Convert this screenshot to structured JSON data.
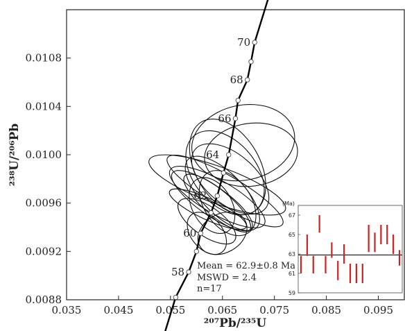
{
  "chart_data": [
    {
      "type": "scatter",
      "subtype": "concordia-diagram",
      "xlabel": "²⁰⁷Pb/²³⁵U",
      "ylabel": "²³⁸U/²⁰⁶Pb",
      "xlim": [
        0.035,
        0.1
      ],
      "ylim": [
        0.0088,
        0.0112
      ],
      "x_ticks": [
        0.035,
        0.045,
        0.055,
        0.065,
        0.075,
        0.085,
        0.095
      ],
      "y_ticks": [
        0.0088,
        0.0092,
        0.0096,
        0.01,
        0.0104,
        0.0108
      ],
      "x_tick_labels": [
        "0.035",
        "0.045",
        "0.055",
        "0.065",
        "0.075",
        "0.085",
        "0.095"
      ],
      "y_tick_labels": [
        "0.0088",
        "0.0092",
        "0.0096",
        "0.0100",
        "0.0104",
        "0.0108"
      ],
      "grid": false,
      "concordia": [
        {
          "x": 0.056,
          "y": 0.00882
        },
        {
          "x": 0.0585,
          "y": 0.00903
        },
        {
          "x": 0.06,
          "y": 0.0092
        },
        {
          "x": 0.0608,
          "y": 0.00935
        },
        {
          "x": 0.0628,
          "y": 0.00952
        },
        {
          "x": 0.064,
          "y": 0.00966
        },
        {
          "x": 0.0652,
          "y": 0.00985
        },
        {
          "x": 0.0662,
          "y": 0.01
        },
        {
          "x": 0.0675,
          "y": 0.0103
        },
        {
          "x": 0.068,
          "y": 0.01045
        },
        {
          "x": 0.0698,
          "y": 0.01062
        },
        {
          "x": 0.0705,
          "y": 0.01077
        },
        {
          "x": 0.0712,
          "y": 0.01093
        }
      ],
      "age_labels": [
        {
          "label": "58",
          "x": 0.0585,
          "y": 0.00903
        },
        {
          "label": "60",
          "x": 0.0608,
          "y": 0.00935
        },
        {
          "label": "62",
          "x": 0.0628,
          "y": 0.00966
        },
        {
          "label": "64",
          "x": 0.0652,
          "y": 0.01
        },
        {
          "label": "66",
          "x": 0.0675,
          "y": 0.0103
        },
        {
          "label": "68",
          "x": 0.0698,
          "y": 0.01062
        },
        {
          "label": "70",
          "x": 0.0712,
          "y": 0.01093
        }
      ],
      "error_ellipses": [
        {
          "cx": 0.069,
          "cy": 0.0101,
          "rx": 0.01,
          "ry": 0.00031,
          "angle": -12
        },
        {
          "cx": 0.0705,
          "cy": 0.01,
          "rx": 0.009,
          "ry": 0.00026,
          "angle": -8
        },
        {
          "cx": 0.066,
          "cy": 0.0099,
          "rx": 0.0062,
          "ry": 0.00043,
          "angle": -30
        },
        {
          "cx": 0.0655,
          "cy": 0.00985,
          "rx": 0.006,
          "ry": 0.0004,
          "angle": -40
        },
        {
          "cx": 0.0665,
          "cy": 0.0098,
          "rx": 0.0048,
          "ry": 0.00038,
          "angle": -50
        },
        {
          "cx": 0.064,
          "cy": 0.00975,
          "rx": 0.0035,
          "ry": 0.0006,
          "angle": -70
        },
        {
          "cx": 0.0655,
          "cy": 0.0097,
          "rx": 0.003,
          "ry": 0.00055,
          "angle": -60
        },
        {
          "cx": 0.065,
          "cy": 0.00968,
          "rx": 0.004,
          "ry": 0.0004,
          "angle": -45
        },
        {
          "cx": 0.064,
          "cy": 0.00965,
          "rx": 0.0032,
          "ry": 0.00045,
          "angle": -60
        },
        {
          "cx": 0.063,
          "cy": 0.00962,
          "rx": 0.0028,
          "ry": 0.0004,
          "angle": -55
        },
        {
          "cx": 0.066,
          "cy": 0.0096,
          "rx": 0.0045,
          "ry": 0.0003,
          "angle": -35
        },
        {
          "cx": 0.064,
          "cy": 0.0096,
          "rx": 0.0025,
          "ry": 0.00035,
          "angle": -50
        },
        {
          "cx": 0.063,
          "cy": 0.00958,
          "rx": 0.0038,
          "ry": 0.00025,
          "angle": -30
        },
        {
          "cx": 0.0622,
          "cy": 0.00955,
          "rx": 0.002,
          "ry": 0.00035,
          "angle": -65
        },
        {
          "cx": 0.062,
          "cy": 0.00945,
          "rx": 0.0028,
          "ry": 0.00028,
          "angle": -55
        },
        {
          "cx": 0.062,
          "cy": 0.00935,
          "rx": 0.003,
          "ry": 0.0002,
          "angle": -40
        },
        {
          "cx": 0.065,
          "cy": 0.00935,
          "rx": 0.005,
          "ry": 0.00016,
          "angle": -30
        }
      ],
      "annotations": [
        "Mean = 62.9±0.8 Ma",
        "MSWD = 2.4",
        "n=17"
      ]
    },
    {
      "type": "bar",
      "subtype": "weighted-mean-age-inset",
      "unit_label": "(Ma)",
      "ylim": [
        59,
        68
      ],
      "y_ticks": [
        59,
        61,
        63,
        65,
        67
      ],
      "y_tick_labels": [
        "59",
        "61",
        "63",
        "65",
        "67"
      ],
      "mean_line": 62.9,
      "bar_color": "#cc2222",
      "bars": [
        {
          "low": 61.0,
          "high": 62.8
        },
        {
          "low": 62.8,
          "high": 65.0
        },
        {
          "low": 61.0,
          "high": 62.8
        },
        {
          "low": 65.2,
          "high": 67.0
        },
        {
          "low": 61.0,
          "high": 62.8
        },
        {
          "low": 62.6,
          "high": 64.2
        },
        {
          "low": 60.3,
          "high": 62.3
        },
        {
          "low": 62.0,
          "high": 64.0
        },
        {
          "low": 60.0,
          "high": 62.0
        },
        {
          "low": 60.0,
          "high": 62.0
        },
        {
          "low": 60.0,
          "high": 62.0
        },
        {
          "low": 63.2,
          "high": 66.0
        },
        {
          "low": 63.2,
          "high": 65.2
        },
        {
          "low": 64.0,
          "high": 66.0
        },
        {
          "low": 64.0,
          "high": 66.0
        },
        {
          "low": 63.0,
          "high": 65.0
        },
        {
          "low": 61.8,
          "high": 63.4
        }
      ]
    }
  ]
}
